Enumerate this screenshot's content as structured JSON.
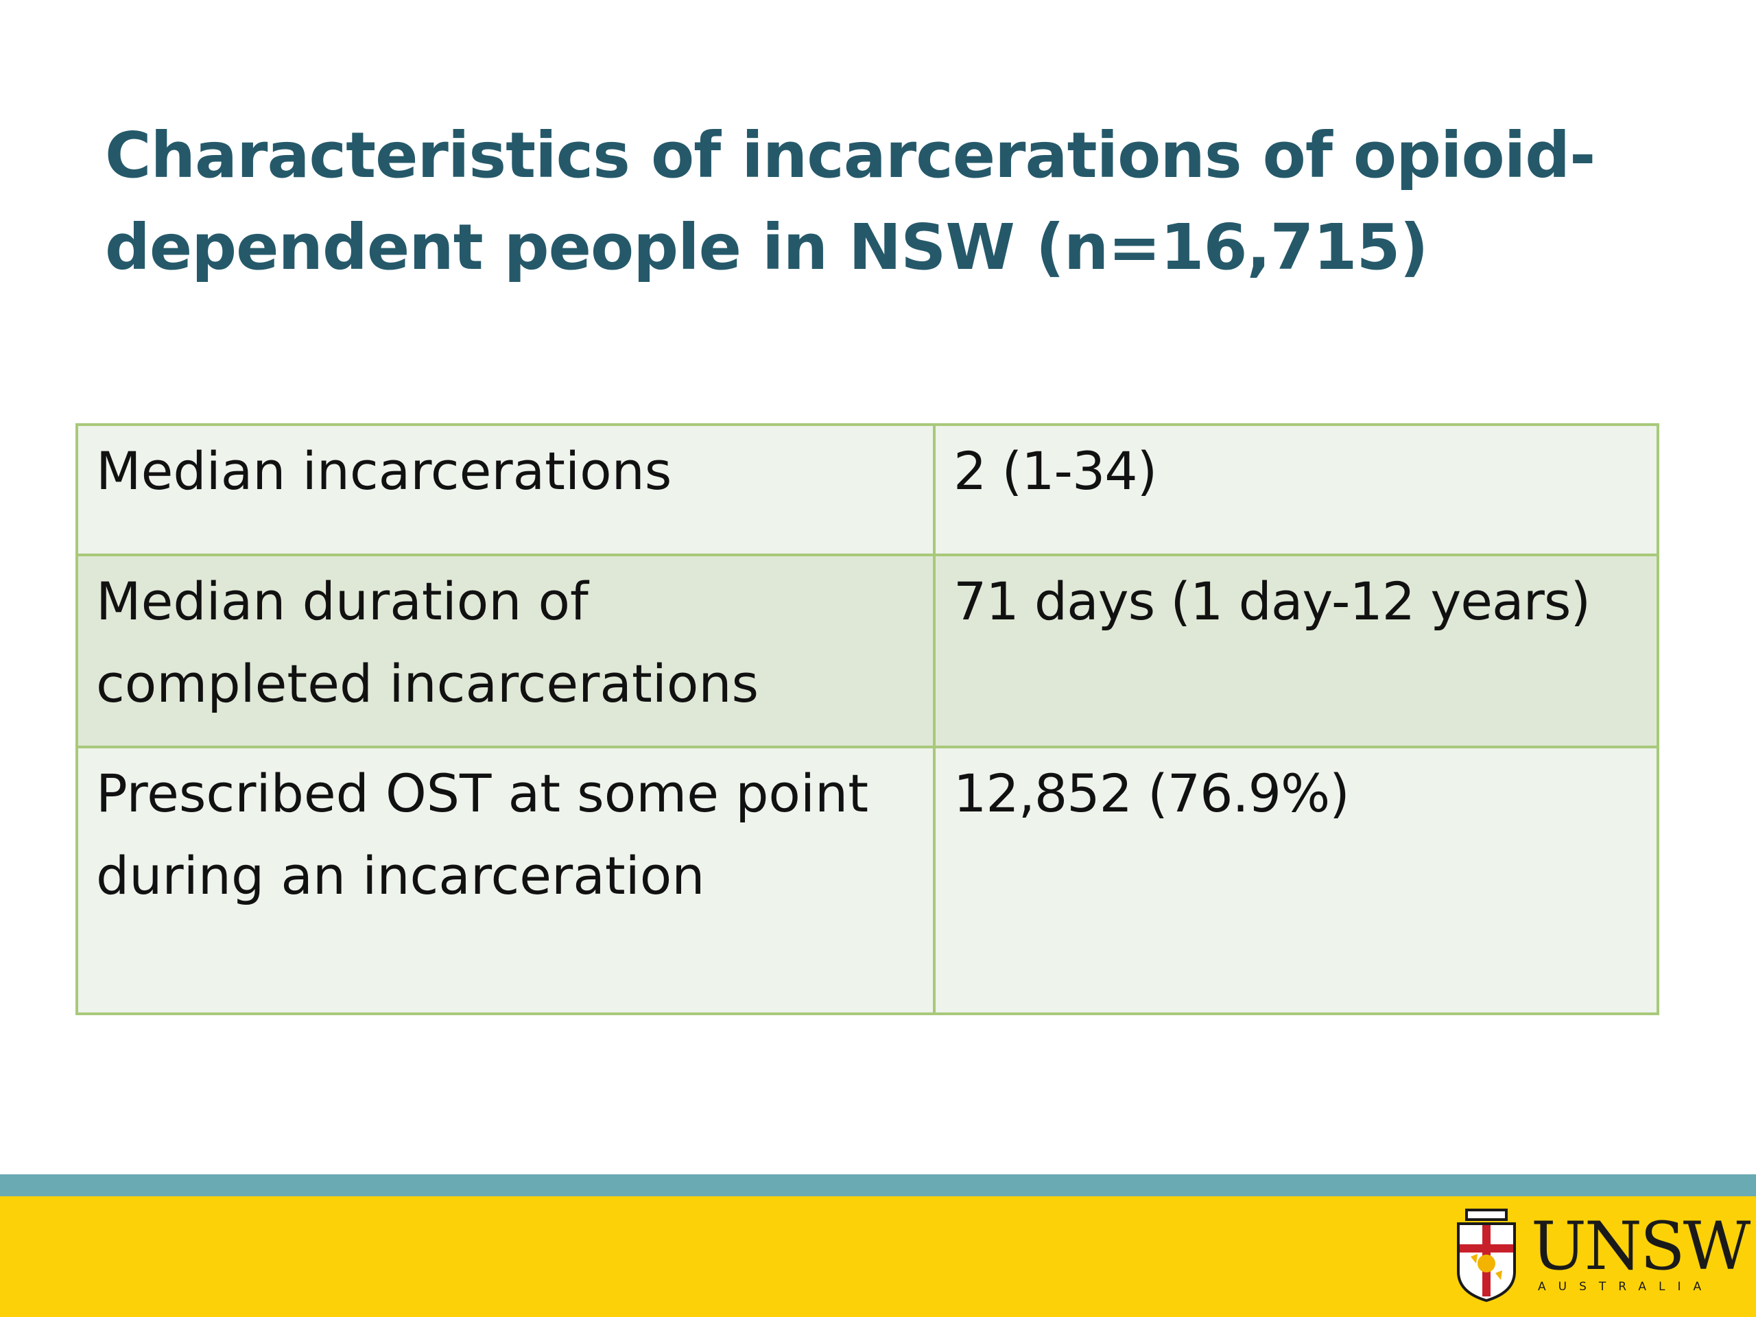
{
  "slide": {
    "title_line1": "Characteristics of incarcerations of opioid-",
    "title_line2": "dependent people in NSW (n=16,715)"
  },
  "table": {
    "rows": [
      {
        "label_line1": "Median incarcerations",
        "label_line2": "",
        "value": "2 (1-34)"
      },
      {
        "label_line1": "Median duration of",
        "label_line2": "completed incarcerations",
        "value": "71 days (1 day-12 years)"
      },
      {
        "label_line1": "Prescribed OST at some point",
        "label_line2": "during an incarceration",
        "value": "12,852 (76.9%)"
      }
    ]
  },
  "footer": {
    "logo_text": "UNSW",
    "logo_subtext": "AUSTRALIA",
    "colors": {
      "band": "#6aaab2",
      "bar": "#fcd107",
      "title": "#25596a",
      "table_border": "#a8c97a"
    }
  }
}
